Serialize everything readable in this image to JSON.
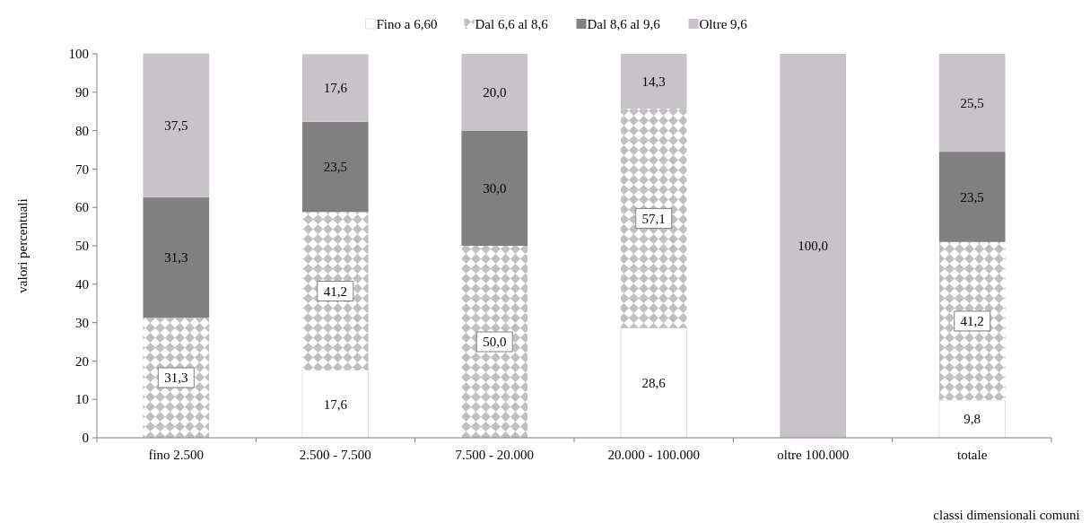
{
  "chart_data": {
    "type": "bar",
    "stacked": true,
    "ylabel": "valori percentuali",
    "xlabel": "classi dimensionali comuni",
    "legend": "top",
    "ylim": [
      0,
      100
    ],
    "yticks": [
      0,
      10,
      20,
      30,
      40,
      50,
      60,
      70,
      80,
      90,
      100
    ],
    "categories": [
      "fino 2.500",
      "2.500 - 7.500",
      "7.500 - 20.000",
      "20.000 - 100.000",
      "oltre 100.000",
      "totale"
    ],
    "series": [
      {
        "name": "Fino a 6,60",
        "color": "#ffffff",
        "values": [
          0,
          17.6,
          0,
          28.6,
          0,
          9.8
        ],
        "value_labels": [
          null,
          "17,6",
          null,
          "28,6",
          null,
          "9,8"
        ]
      },
      {
        "name": "Dal 6,6 al 8,6",
        "color": "#c0c0c0",
        "values": [
          31.3,
          41.2,
          50.0,
          57.1,
          0,
          41.2
        ],
        "value_labels": [
          "31,3",
          "41,2",
          "50,0",
          "57,1",
          null,
          "41,2"
        ]
      },
      {
        "name": "Dal 8,6 al 9,6",
        "color": "#808080",
        "values": [
          31.3,
          23.5,
          30.0,
          0,
          0,
          23.5
        ],
        "value_labels": [
          "31,3",
          "23,5",
          "30,0",
          null,
          null,
          "23,5"
        ]
      },
      {
        "name": "Oltre 9,6",
        "color": "#c8c3c8",
        "values": [
          37.5,
          17.6,
          20.0,
          14.3,
          100.0,
          25.5
        ],
        "value_labels": [
          "37,5",
          "17,6",
          "20,0",
          "14,3",
          "100,0",
          "25,5"
        ]
      }
    ]
  }
}
